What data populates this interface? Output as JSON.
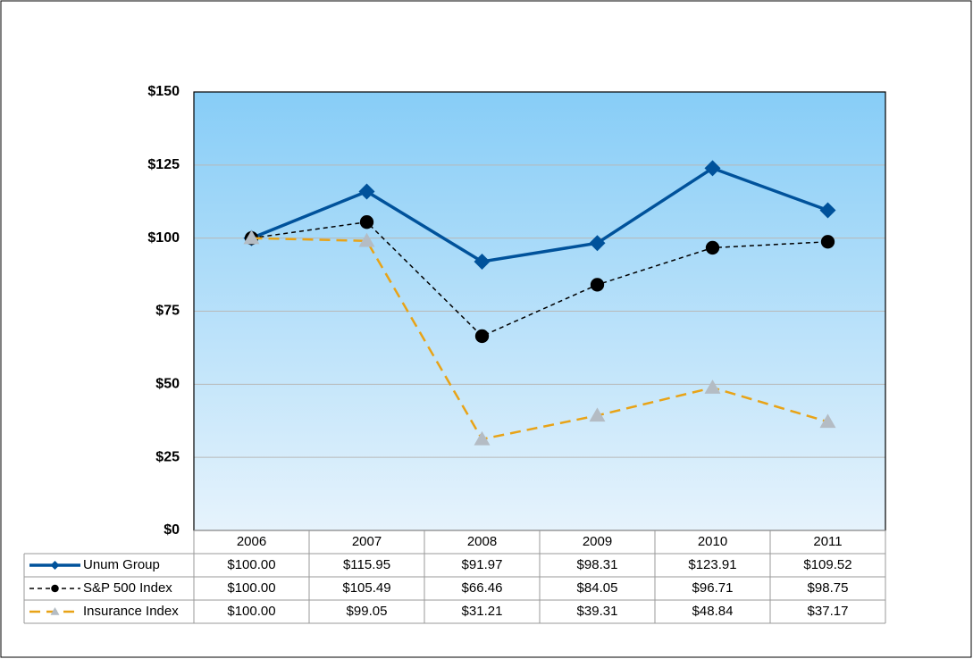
{
  "chart_data": {
    "type": "line",
    "categories": [
      "2006",
      "2007",
      "2008",
      "2009",
      "2010",
      "2011"
    ],
    "series": [
      {
        "name": "Unum Group",
        "color": "#00529b",
        "marker": "diamond",
        "marker_color": "#00529b",
        "dash": "solid",
        "values": [
          100,
          115.95,
          91.97,
          98.31,
          123.91,
          109.52
        ],
        "value_labels": [
          "$100.00",
          "$115.95",
          "$91.97",
          "$98.31",
          "$123.91",
          "$109.52"
        ]
      },
      {
        "name": "S&P 500 Index",
        "color": "#000000",
        "marker": "circle",
        "marker_color": "#000000",
        "dash": "short",
        "values": [
          100,
          105.49,
          66.46,
          84.05,
          96.71,
          98.75
        ],
        "value_labels": [
          "$100.00",
          "$105.49",
          "$66.46",
          "$84.05",
          "$96.71",
          "$98.75"
        ]
      },
      {
        "name": "Insurance Index",
        "color": "#e8a317",
        "marker": "triangle",
        "marker_color": "#b4bcc4",
        "dash": "long",
        "values": [
          100,
          99.05,
          31.21,
          39.31,
          48.84,
          37.17
        ],
        "value_labels": [
          "$100.00",
          "$99.05",
          "$31.21",
          "$39.31",
          "$48.84",
          "$37.17"
        ]
      }
    ],
    "ylim": [
      0,
      150
    ],
    "yticks": [
      {
        "value": 0,
        "label": "$0"
      },
      {
        "value": 25,
        "label": "$25"
      },
      {
        "value": 50,
        "label": "$50"
      },
      {
        "value": 75,
        "label": "$75"
      },
      {
        "value": 100,
        "label": "$100"
      },
      {
        "value": 125,
        "label": "$125"
      },
      {
        "value": 150,
        "label": "$150"
      }
    ],
    "grid": true
  }
}
